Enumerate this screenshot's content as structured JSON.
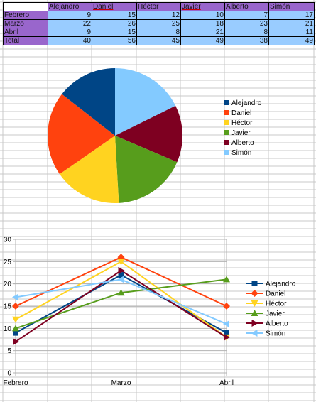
{
  "sheet": {
    "columns": [
      "Alejandro",
      "Daniel",
      "Héctor",
      "Javier",
      "Alberto",
      "Simón"
    ],
    "underlined_columns": [
      2,
      4
    ],
    "rows": [
      {
        "label": "Febrero",
        "values": [
          9,
          15,
          12,
          10,
          7,
          17
        ]
      },
      {
        "label": "Marzo",
        "values": [
          22,
          26,
          25,
          18,
          23,
          21
        ]
      },
      {
        "label": "Abril",
        "values": [
          9,
          15,
          8,
          21,
          8,
          11
        ]
      },
      {
        "label": "Total",
        "values": [
          40,
          56,
          45,
          49,
          38,
          49
        ]
      }
    ],
    "colors": {
      "header_bg": "#9966cc",
      "cell_bg": "#99ccff"
    }
  },
  "series_colors": [
    "#004586",
    "#ff420e",
    "#ffd320",
    "#579d1c",
    "#7e0021",
    "#83caff"
  ],
  "chart_data": [
    {
      "type": "pie",
      "categories": [
        "Alejandro",
        "Daniel",
        "Héctor",
        "Javier",
        "Alberto",
        "Simón"
      ],
      "values": [
        40,
        56,
        45,
        49,
        38,
        49
      ],
      "legend": "right",
      "start": "top, clockwise (Simón, Alberto, Javier, Héctor, Daniel, Alejandro)"
    },
    {
      "type": "line",
      "categories": [
        "Febrero",
        "Marzo",
        "Abril"
      ],
      "series": [
        {
          "name": "Alejandro",
          "values": [
            9,
            22,
            9
          ],
          "marker": "square"
        },
        {
          "name": "Daniel",
          "values": [
            15,
            26,
            15
          ],
          "marker": "diamond"
        },
        {
          "name": "Héctor",
          "values": [
            12,
            25,
            8
          ],
          "marker": "triangle-down"
        },
        {
          "name": "Javier",
          "values": [
            10,
            18,
            21
          ],
          "marker": "triangle-up"
        },
        {
          "name": "Alberto",
          "values": [
            7,
            23,
            8
          ],
          "marker": "triangle-right"
        },
        {
          "name": "Simón",
          "values": [
            17,
            21,
            11
          ],
          "marker": "triangle-left"
        }
      ],
      "ylim": [
        0,
        30
      ],
      "yticks": [
        0,
        5,
        10,
        15,
        20,
        25,
        30
      ],
      "grid": "horizontal",
      "legend": "right"
    }
  ]
}
